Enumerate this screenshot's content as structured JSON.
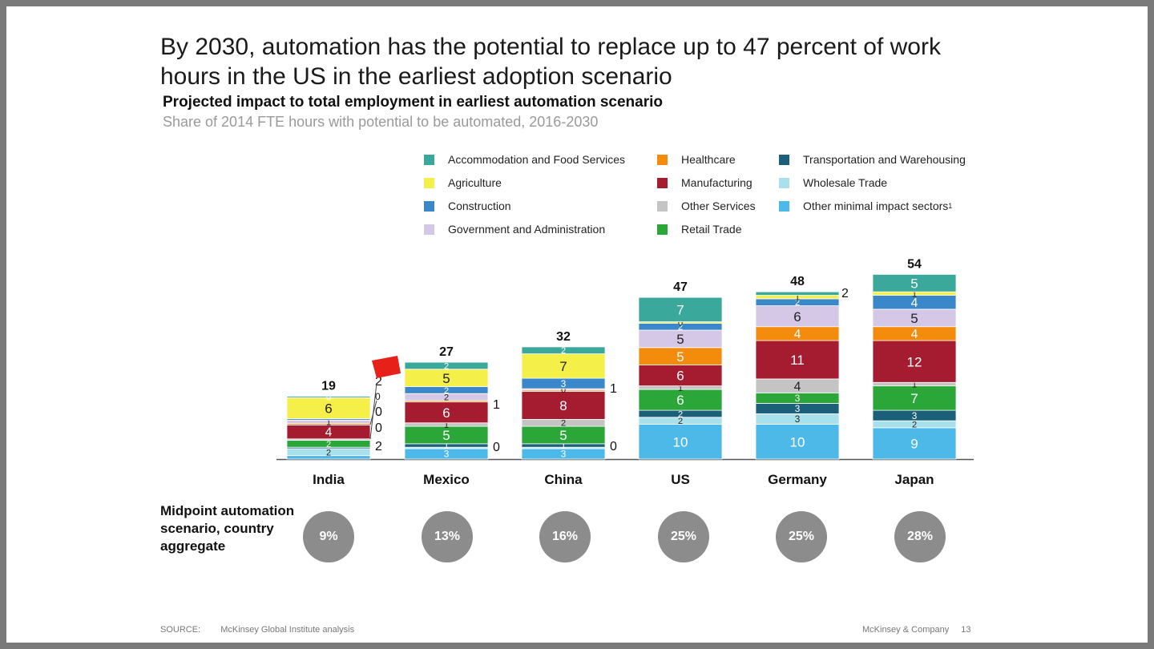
{
  "headline": "By 2030, automation has the potential to replace up to 47 percent of work hours in the US in the earliest adoption scenario",
  "chart_data": {
    "type": "bar",
    "stacked": true,
    "title": "Projected impact to total employment in earliest automation scenario",
    "subtitle": "Share of 2014 FTE hours with potential to be automated, 2016-2030",
    "categories": [
      "India",
      "Mexico",
      "China",
      "US",
      "Germany",
      "Japan"
    ],
    "totals": [
      "19",
      "27",
      "32",
      "47",
      "48",
      "54"
    ],
    "series": [
      {
        "name": "Other minimal impact sectors",
        "superscript": "1",
        "color": "#4cb9e8",
        "values": [
          1,
          3,
          3,
          10,
          10,
          9
        ],
        "labels": [
          "",
          "3",
          "3",
          "10",
          "10",
          "9"
        ]
      },
      {
        "name": "Wholesale Trade",
        "color": "#a8e0ec",
        "values": [
          2,
          0.4,
          0.4,
          2,
          3,
          2
        ],
        "labels": [
          "2",
          "",
          "",
          "2",
          "3",
          "2"
        ]
      },
      {
        "name": "Transportation and Warehousing",
        "color": "#1b5f78",
        "values": [
          0.4,
          1,
          1,
          2,
          3,
          3
        ],
        "labels": [
          "",
          "1",
          "1",
          "2",
          "3",
          "3"
        ]
      },
      {
        "name": "Retail Trade",
        "color": "#2aa738",
        "values": [
          2,
          5,
          5,
          6,
          3,
          7
        ],
        "labels": [
          "2",
          "5",
          "5",
          "6",
          "3",
          "7"
        ]
      },
      {
        "name": "Other Services",
        "color": "#c4c4c4",
        "values": [
          0.4,
          1,
          2,
          1,
          4,
          1
        ],
        "labels": [
          "",
          "1",
          "2",
          "1",
          "4",
          "1"
        ]
      },
      {
        "name": "Manufacturing",
        "color": "#a51c30",
        "values": [
          4,
          6,
          8,
          6,
          11,
          12
        ],
        "labels": [
          "4",
          "6",
          "8",
          "6",
          "11",
          "12"
        ]
      },
      {
        "name": "Healthcare",
        "color": "#f38b0d",
        "values": [
          0.4,
          0.4,
          0.4,
          5,
          4,
          4
        ],
        "labels": [
          "",
          "",
          "",
          "5",
          "4",
          "4"
        ]
      },
      {
        "name": "Government and Administration",
        "color": "#d5c8e6",
        "values": [
          1,
          2,
          0.4,
          5,
          6,
          5
        ],
        "labels": [
          "1",
          "2",
          "0",
          "5",
          "6",
          "5"
        ]
      },
      {
        "name": "Construction",
        "color": "#3a88c9",
        "values": [
          0.4,
          2,
          3,
          2,
          2,
          4
        ],
        "labels": [
          "",
          "2",
          "3",
          "2",
          "2",
          "4"
        ]
      },
      {
        "name": "Agriculture",
        "color": "#f5ef4a",
        "values": [
          6,
          5,
          7,
          0.4,
          1,
          1
        ],
        "labels": [
          "6",
          "5",
          "7",
          "0",
          "1",
          "1"
        ]
      },
      {
        "name": "Accommodation and Food Services",
        "color": "#3aa89a",
        "values": [
          0.4,
          2,
          2,
          7,
          1,
          5
        ],
        "labels": [
          "0",
          "2",
          "2",
          "7",
          "",
          "5"
        ]
      }
    ],
    "side_labels": [
      {
        "category": "India",
        "labels": [
          "2",
          "0",
          "0",
          "0",
          "2"
        ]
      },
      {
        "category": "Mexico",
        "labels": [
          "1",
          "0"
        ]
      },
      {
        "category": "China",
        "labels": [
          "1",
          "0"
        ]
      },
      {
        "category": "Germany",
        "labels": [
          "2"
        ]
      }
    ],
    "midpoint": {
      "label": "Midpoint automation scenario, country aggregate",
      "values": [
        "9%",
        "13%",
        "16%",
        "25%",
        "25%",
        "28%"
      ]
    }
  },
  "legend_items": [
    {
      "label": "Accommodation and Food Services",
      "color": "#3aa89a"
    },
    {
      "label": "Agriculture",
      "color": "#f5ef4a"
    },
    {
      "label": "Construction",
      "color": "#3a88c9"
    },
    {
      "label": "Government and Administration",
      "color": "#d5c8e6"
    },
    {
      "label": "Healthcare",
      "color": "#f38b0d"
    },
    {
      "label": "Manufacturing",
      "color": "#a51c30"
    },
    {
      "label": "Other Services",
      "color": "#c4c4c4"
    },
    {
      "label": "Retail Trade",
      "color": "#2aa738"
    },
    {
      "label": "Transportation and Warehousing",
      "color": "#1b5f78"
    },
    {
      "label": "Wholesale Trade",
      "color": "#a8e0ec"
    },
    {
      "label": "Other minimal impact sectors",
      "color": "#4cb9e8",
      "sup": "1"
    }
  ],
  "footer": {
    "source_label": "SOURCE:",
    "source_text": "McKinsey Global Institute analysis",
    "brand": "McKinsey & Company",
    "page": "13"
  }
}
